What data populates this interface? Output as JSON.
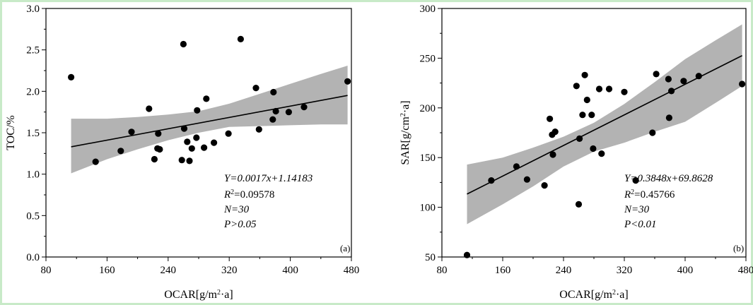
{
  "colors": {
    "band": "#b3b3b3",
    "line": "#000000",
    "point": "#000000",
    "frame": "#c8eac8"
  },
  "chart_data": [
    {
      "type": "scatter",
      "panel_tag": "(a)",
      "xlabel": "OCAR[g/m²·a]",
      "ylabel": "TOC/%",
      "xlim": [
        80,
        480
      ],
      "ylim": [
        0,
        3.0
      ],
      "xticks": [
        80,
        160,
        240,
        320,
        400,
        480
      ],
      "yticks": [
        0.0,
        0.5,
        1.0,
        1.5,
        2.0,
        2.5,
        3.0
      ],
      "ytick_labels": [
        "0.0",
        "0.5",
        "1.0",
        "1.5",
        "2.0",
        "2.5",
        "3.0"
      ],
      "x": [
        113,
        145,
        178,
        192,
        215,
        222,
        226,
        227,
        229,
        258,
        260,
        261,
        265,
        268,
        271,
        277,
        278,
        287,
        290,
        300,
        319,
        335,
        355,
        359,
        377,
        378,
        381,
        398,
        418,
        475
      ],
      "y": [
        2.17,
        1.15,
        1.28,
        1.51,
        1.79,
        1.18,
        1.31,
        1.49,
        1.3,
        1.17,
        2.57,
        1.55,
        1.39,
        1.16,
        1.31,
        1.44,
        1.77,
        1.32,
        1.91,
        1.38,
        1.49,
        2.63,
        2.04,
        1.54,
        1.66,
        1.99,
        1.76,
        1.75,
        1.81,
        2.12
      ],
      "fit": {
        "x": [
          113,
          475
        ],
        "y": [
          1.33,
          1.95
        ]
      },
      "band": {
        "x": [
          113,
          160,
          200,
          240,
          280,
          320,
          360,
          400,
          440,
          475
        ],
        "upper": [
          1.67,
          1.67,
          1.69,
          1.72,
          1.76,
          1.85,
          1.97,
          2.09,
          2.21,
          2.31
        ],
        "lower": [
          1.01,
          1.18,
          1.3,
          1.41,
          1.5,
          1.57,
          1.58,
          1.59,
          1.6,
          1.6
        ]
      },
      "stats": {
        "equation": "Y=0.0017x+1.14183",
        "r2_symbol": "R",
        "r2_value": "=0.09578",
        "n": "N=30",
        "p": "P>0.05"
      }
    },
    {
      "type": "scatter",
      "panel_tag": "(b)",
      "xlabel": "OCAR[g/m²·a]",
      "ylabel": "SAR[g/cm²·a]",
      "xlim": [
        80,
        480
      ],
      "ylim": [
        50,
        300
      ],
      "xticks": [
        80,
        160,
        240,
        320,
        400,
        480
      ],
      "yticks": [
        50,
        100,
        150,
        200,
        250,
        300
      ],
      "ytick_labels": [
        "50",
        "100",
        "150",
        "200",
        "250",
        "300"
      ],
      "x": [
        113,
        145,
        178,
        192,
        215,
        222,
        225,
        226,
        229,
        257,
        260,
        261,
        265,
        268,
        271,
        277,
        279,
        287,
        290,
        300,
        320,
        335,
        357,
        362,
        378,
        379,
        382,
        398,
        418,
        475
      ],
      "y": [
        52,
        127,
        141,
        128,
        122,
        189,
        173,
        153,
        176,
        222,
        103,
        169,
        193,
        233,
        208,
        193,
        159,
        219,
        154,
        219,
        216,
        127,
        175,
        234,
        229,
        190,
        217,
        227,
        232,
        224
      ],
      "fit": {
        "x": [
          113,
          475
        ],
        "y": [
          113.3,
          252.6
        ]
      },
      "band": {
        "x": [
          113,
          160,
          200,
          240,
          280,
          320,
          360,
          400,
          440,
          475
        ],
        "upper": [
          143,
          150,
          160,
          171,
          185,
          204,
          226,
          249,
          268,
          284
        ],
        "lower": [
          83,
          103,
          121,
          141,
          156,
          165,
          176,
          186,
          205,
          222
        ]
      },
      "stats": {
        "equation": "Y=0.3848x+69.8628",
        "r2_symbol": "R",
        "r2_value": "=0.45766",
        "n": "N=30",
        "p": "P<0.01"
      }
    }
  ]
}
